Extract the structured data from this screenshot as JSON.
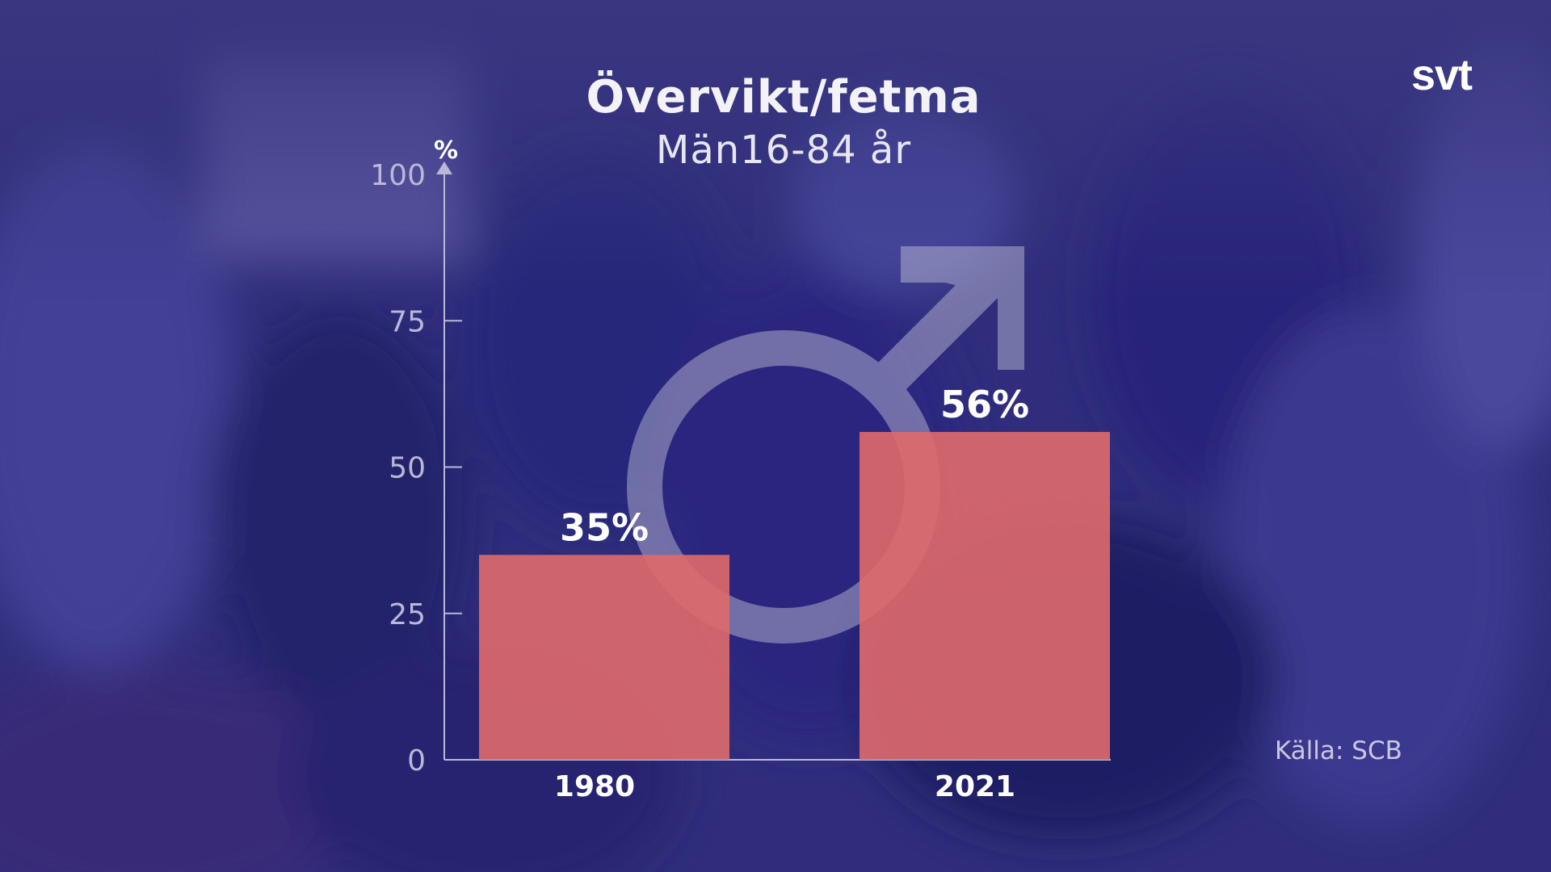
{
  "brand": {
    "logo_text": "svt"
  },
  "chart_data": {
    "type": "bar",
    "title": "Övervikt/fetma",
    "subtitle": "Män16-84 år",
    "ylabel": "%",
    "ylim": [
      0,
      100
    ],
    "yticks": [
      "0",
      "25",
      "50",
      "75",
      "100"
    ],
    "categories": [
      "1980",
      "2021"
    ],
    "values": [
      35,
      56
    ],
    "value_labels": [
      "35%",
      "56%"
    ],
    "bar_color": "#e06a6a",
    "source": "Källa: SCB",
    "grid": false,
    "decoration": "male-symbol"
  },
  "colors": {
    "background": "#2e2c7a",
    "axis": "#b9b8d8",
    "text": "#ffffff"
  }
}
